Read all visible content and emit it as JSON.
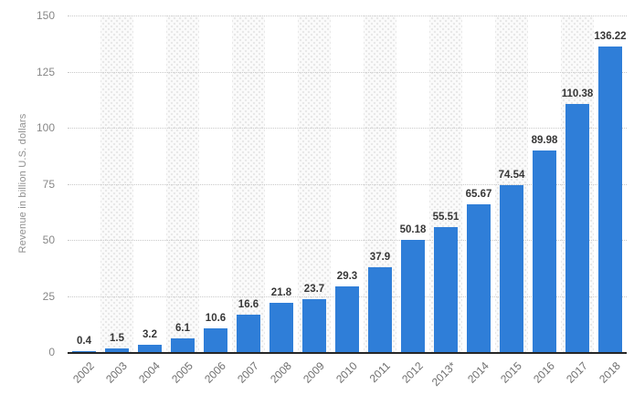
{
  "chart_data": {
    "type": "bar",
    "title": "",
    "xlabel": "",
    "ylabel": "Revenue in billion U.S. dollars",
    "categories": [
      "2002",
      "2003",
      "2004",
      "2005",
      "2006",
      "2007",
      "2008",
      "2009",
      "2010",
      "2011",
      "2012",
      "2013*",
      "2014",
      "2015",
      "2016",
      "2017",
      "2018"
    ],
    "values": [
      0.4,
      1.5,
      3.2,
      6.1,
      10.6,
      16.6,
      21.8,
      23.7,
      29.3,
      37.9,
      50.18,
      55.51,
      65.67,
      74.54,
      89.98,
      110.38,
      136.22
    ],
    "value_labels": [
      "0.4",
      "1.5",
      "3.2",
      "6.1",
      "10.6",
      "16.6",
      "21.8",
      "23.7",
      "29.3",
      "37.9",
      "50.18",
      "55.51",
      "65.67",
      "74.54",
      "89.98",
      "110.38",
      "136.22"
    ],
    "yticks": [
      0,
      25,
      50,
      75,
      100,
      125,
      150
    ],
    "ylim": [
      0,
      150
    ],
    "grid": "horizontal-dotted",
    "legend": "none",
    "bar_color": "#2f7ed8",
    "striped_background_columns": [
      "2003",
      "2005",
      "2007",
      "2009",
      "2011",
      "2013*",
      "2015",
      "2017"
    ]
  }
}
